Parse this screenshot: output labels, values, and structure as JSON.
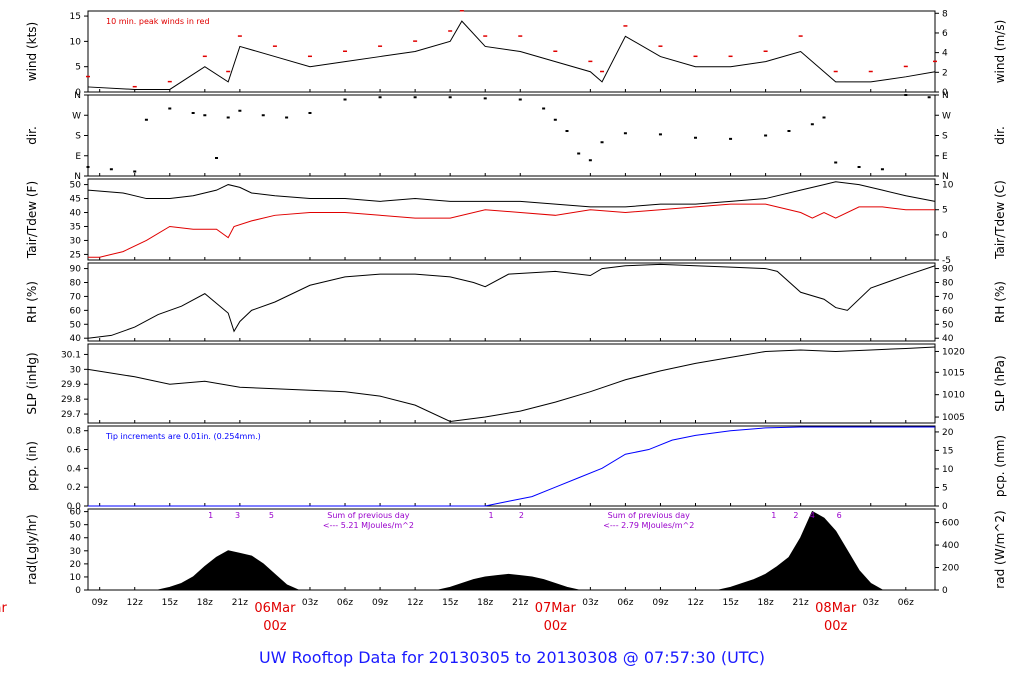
{
  "footer_title": "UW Rooftop Data for 20130305  to  20130308 @ 07:57:30  (UTC)",
  "colors": {
    "axis": "#000000",
    "series": "#000000",
    "red": "#e00000",
    "blue": "#0000ff",
    "purple": "#9900cc",
    "footer": "#1a1aff"
  },
  "x_axis": {
    "ticks": [
      {
        "hour": 1,
        "label": "09z"
      },
      {
        "hour": 4,
        "label": "12z"
      },
      {
        "hour": 7,
        "label": "15z"
      },
      {
        "hour": 10,
        "label": "18z"
      },
      {
        "hour": 13,
        "label": "21z"
      },
      {
        "hour": 19,
        "label": "03z"
      },
      {
        "hour": 22,
        "label": "06z"
      },
      {
        "hour": 25,
        "label": "09z"
      },
      {
        "hour": 28,
        "label": "12z"
      },
      {
        "hour": 31,
        "label": "15z"
      },
      {
        "hour": 34,
        "label": "18z"
      },
      {
        "hour": 37,
        "label": "21z"
      },
      {
        "hour": 43,
        "label": "03z"
      },
      {
        "hour": 46,
        "label": "06z"
      },
      {
        "hour": 49,
        "label": "09z"
      },
      {
        "hour": 52,
        "label": "12z"
      },
      {
        "hour": 55,
        "label": "15z"
      },
      {
        "hour": 58,
        "label": "18z"
      },
      {
        "hour": 61,
        "label": "21z"
      },
      {
        "hour": 67,
        "label": "03z"
      },
      {
        "hour": 70,
        "label": "06z"
      }
    ],
    "days": [
      {
        "hour": -8,
        "date": "Mar",
        "z": "z"
      },
      {
        "hour": 16,
        "date": "06Mar",
        "z": "00z"
      },
      {
        "hour": 40,
        "date": "07Mar",
        "z": "00z"
      },
      {
        "hour": 64,
        "date": "08Mar",
        "z": "00z"
      }
    ],
    "range_hours": [
      0,
      72.5
    ]
  },
  "chart_data": [
    {
      "type": "line",
      "id": "wind",
      "ylabel_left": "wind (kts)",
      "ylabel_right": "wind (m/s)",
      "annotation": "10 min. peak winds in red",
      "ylim": [
        0,
        16
      ],
      "left_ticks": [
        0,
        5,
        10,
        15
      ],
      "right_ticks": [
        {
          "value": 0,
          "label": "0"
        },
        {
          "value": 3.89,
          "label": "2"
        },
        {
          "value": 7.78,
          "label": "4"
        },
        {
          "value": 11.66,
          "label": "6"
        },
        {
          "value": 15.55,
          "label": "8"
        }
      ],
      "series": [
        {
          "x": [
            0,
            4,
            7,
            10,
            12,
            13,
            16,
            19,
            22,
            25,
            28,
            31,
            32,
            34,
            37,
            40,
            43,
            44,
            46,
            49,
            52,
            55,
            58,
            61,
            64,
            67,
            70,
            72.5
          ],
          "values": [
            1,
            0.5,
            0.5,
            5,
            2,
            9,
            7,
            5,
            6,
            7,
            8,
            10,
            14,
            9,
            8,
            6,
            4,
            2,
            11,
            7,
            5,
            5,
            6,
            8,
            2,
            2,
            3,
            4
          ]
        }
      ],
      "peak_x": [
        0,
        4,
        7,
        10,
        12,
        13,
        16,
        19,
        22,
        25,
        28,
        31,
        32,
        34,
        37,
        40,
        43,
        44,
        46,
        49,
        52,
        55,
        58,
        61,
        64,
        67,
        70,
        72.5
      ],
      "peak_values": [
        3,
        1,
        2,
        7,
        4,
        11,
        9,
        7,
        8,
        9,
        10,
        12,
        16,
        11,
        11,
        8,
        6,
        4,
        13,
        9,
        7,
        7,
        8,
        11,
        4,
        4,
        5,
        6
      ]
    },
    {
      "type": "scatter",
      "id": "dir",
      "ylabel_left": "dir.",
      "ylabel_right": "dir.",
      "ylim": [
        0,
        360
      ],
      "left_ticks": [
        {
          "value": 0,
          "label": "N"
        },
        {
          "value": 90,
          "label": "E"
        },
        {
          "value": 180,
          "label": "S"
        },
        {
          "value": 270,
          "label": "W"
        },
        {
          "value": 360,
          "label": "N"
        }
      ],
      "right_ticks": [
        {
          "value": 0,
          "label": "N"
        },
        {
          "value": 90,
          "label": "E"
        },
        {
          "value": 180,
          "label": "S"
        },
        {
          "value": 270,
          "label": "W"
        },
        {
          "value": 360,
          "label": "N"
        }
      ],
      "series": [
        {
          "x": [
            0,
            2,
            4,
            5,
            7,
            9,
            10,
            11,
            12,
            13,
            15,
            17,
            19,
            22,
            25,
            28,
            31,
            34,
            37,
            39,
            40,
            41,
            42,
            43,
            44,
            46,
            49,
            52,
            55,
            58,
            60,
            62,
            63,
            64,
            66,
            68,
            70,
            72
          ],
          "values": [
            40,
            30,
            20,
            250,
            300,
            280,
            270,
            80,
            260,
            290,
            270,
            260,
            280,
            340,
            350,
            350,
            350,
            345,
            340,
            300,
            250,
            200,
            100,
            70,
            150,
            190,
            185,
            170,
            165,
            180,
            200,
            230,
            260,
            60,
            40,
            30,
            360,
            350
          ]
        }
      ]
    },
    {
      "type": "line",
      "id": "temp",
      "ylabel_left": "Tair/Tdew (F)",
      "ylabel_right": "Tair/Tdew (C)",
      "ylim": [
        23,
        52
      ],
      "left_ticks": [
        25,
        30,
        35,
        40,
        45,
        50
      ],
      "right_ticks": [
        {
          "value": 23,
          "label": "-5"
        },
        {
          "value": 32,
          "label": "0"
        },
        {
          "value": 41,
          "label": "5"
        },
        {
          "value": 50,
          "label": "10"
        }
      ],
      "series": [
        {
          "x": [
            0,
            3,
            5,
            7,
            9,
            11,
            12,
            13,
            14,
            16,
            19,
            22,
            25,
            28,
            31,
            34,
            37,
            40,
            43,
            46,
            49,
            52,
            55,
            58,
            61,
            63,
            64,
            66,
            68,
            70,
            72.5
          ],
          "values": [
            48,
            47,
            45,
            45,
            46,
            48,
            50,
            49,
            47,
            46,
            45,
            45,
            44,
            45,
            44,
            44,
            44,
            43,
            42,
            42,
            43,
            43,
            44,
            45,
            48,
            50,
            51,
            50,
            48,
            46,
            44
          ]
        },
        {
          "x": [
            0,
            1,
            3,
            5,
            7,
            9,
            11,
            12,
            12.5,
            14,
            16,
            19,
            22,
            25,
            28,
            31,
            34,
            37,
            40,
            43,
            46,
            49,
            52,
            55,
            58,
            61,
            62,
            63,
            64,
            66,
            68,
            70,
            72.5
          ],
          "values": [
            24,
            24,
            26,
            30,
            35,
            34,
            34,
            31,
            35,
            37,
            39,
            40,
            40,
            39,
            38,
            38,
            41,
            40,
            39,
            41,
            40,
            41,
            42,
            43,
            43,
            40,
            38,
            40,
            38,
            42,
            42,
            41,
            41
          ]
        }
      ]
    },
    {
      "type": "line",
      "id": "rh",
      "ylabel_left": "RH (%)",
      "ylabel_right": "RH (%)",
      "ylim": [
        38,
        94
      ],
      "left_ticks": [
        40,
        50,
        60,
        70,
        80,
        90
      ],
      "right_ticks": [
        {
          "value": 40,
          "label": "40"
        },
        {
          "value": 50,
          "label": "50"
        },
        {
          "value": 60,
          "label": "60"
        },
        {
          "value": 70,
          "label": "70"
        },
        {
          "value": 80,
          "label": "80"
        },
        {
          "value": 90,
          "label": "90"
        }
      ],
      "series": [
        {
          "x": [
            0,
            2,
            4,
            6,
            8,
            10,
            12,
            12.5,
            13,
            14,
            16,
            19,
            22,
            25,
            28,
            31,
            33,
            34,
            36,
            40,
            43,
            44,
            46,
            49,
            52,
            55,
            58,
            59,
            61,
            63,
            64,
            65,
            67,
            70,
            72.5
          ],
          "values": [
            40,
            42,
            48,
            57,
            63,
            72,
            58,
            45,
            52,
            60,
            66,
            78,
            84,
            86,
            86,
            84,
            80,
            77,
            86,
            88,
            85,
            90,
            92,
            93,
            92,
            91,
            90,
            88,
            73,
            68,
            62,
            60,
            76,
            85,
            92
          ]
        }
      ]
    },
    {
      "type": "line",
      "id": "slp",
      "ylabel_left": "SLP (inHg)",
      "ylabel_right": "SLP (hPa)",
      "ylim": [
        29.64,
        30.17
      ],
      "left_ticks": [
        29.7,
        29.8,
        29.9,
        30.0,
        30.1
      ],
      "right_ticks": [
        {
          "value": 29.68,
          "label": "1005"
        },
        {
          "value": 29.83,
          "label": "1010"
        },
        {
          "value": 29.98,
          "label": "1015"
        },
        {
          "value": 30.12,
          "label": "1020"
        }
      ],
      "series": [
        {
          "x": [
            0,
            4,
            7,
            10,
            13,
            16,
            19,
            22,
            25,
            28,
            31,
            34,
            37,
            40,
            43,
            46,
            49,
            52,
            55,
            58,
            61,
            64,
            67,
            70,
            72.5
          ],
          "values": [
            30.0,
            29.95,
            29.9,
            29.92,
            29.88,
            29.87,
            29.86,
            29.85,
            29.82,
            29.76,
            29.65,
            29.68,
            29.72,
            29.78,
            29.85,
            29.93,
            29.99,
            30.04,
            30.08,
            30.12,
            30.13,
            30.12,
            30.13,
            30.14,
            30.15
          ]
        }
      ]
    },
    {
      "type": "area",
      "id": "pcp",
      "ylabel_left": "pcp. (in)",
      "ylabel_right": "pcp. (mm)",
      "annotation": "Tip increments are 0.01in. (0.254mm.)",
      "ylim": [
        0,
        0.85
      ],
      "left_ticks": [
        0,
        0.2,
        0.4,
        0.6,
        0.8
      ],
      "left_labels": [
        "0.0",
        "0.2",
        "0.4",
        "0.6",
        "0.8"
      ],
      "right_ticks": [
        {
          "value": 0,
          "label": "0"
        },
        {
          "value": 0.197,
          "label": "5"
        },
        {
          "value": 0.394,
          "label": "10"
        },
        {
          "value": 0.591,
          "label": "15"
        },
        {
          "value": 0.787,
          "label": "20"
        }
      ],
      "series": [
        {
          "x": [
            0,
            34,
            36,
            38,
            40,
            42,
            44,
            46,
            48,
            50,
            52,
            55,
            58,
            61,
            64,
            67,
            70,
            72.5
          ],
          "values": [
            0,
            0,
            0.05,
            0.1,
            0.2,
            0.3,
            0.4,
            0.55,
            0.6,
            0.7,
            0.75,
            0.8,
            0.83,
            0.84,
            0.84,
            0.84,
            0.84,
            0.84
          ]
        }
      ]
    },
    {
      "type": "area",
      "id": "rad",
      "ylabel_left": "rad(Lgly/hr)",
      "ylabel_right": "rad (W/m^2)",
      "ylim": [
        0,
        62
      ],
      "left_ticks": [
        0,
        10,
        20,
        30,
        40,
        50,
        60
      ],
      "right_ticks": [
        {
          "value": 0,
          "label": "0"
        },
        {
          "value": 17.2,
          "label": "200"
        },
        {
          "value": 34.4,
          "label": "400"
        },
        {
          "value": 51.6,
          "label": "600"
        }
      ],
      "series": [
        {
          "x": [
            6,
            7,
            8,
            9,
            10,
            11,
            12,
            13,
            14,
            15,
            16,
            17,
            18,
            30,
            31,
            32,
            33,
            34,
            35,
            36,
            37,
            38,
            39,
            40,
            41,
            42,
            54,
            55,
            56,
            57,
            58,
            59,
            60,
            61,
            62,
            63,
            64,
            65,
            66,
            67,
            68
          ],
          "values": [
            0,
            2,
            5,
            10,
            18,
            25,
            30,
            28,
            26,
            20,
            12,
            4,
            0,
            0,
            2,
            5,
            8,
            10,
            11,
            12,
            11,
            10,
            8,
            5,
            2,
            0,
            0,
            2,
            5,
            8,
            12,
            18,
            25,
            40,
            60,
            55,
            45,
            30,
            15,
            5,
            0
          ]
        }
      ],
      "sun_ticks": [
        {
          "hour": 10.5,
          "label": "1"
        },
        {
          "hour": 12.8,
          "label": "3"
        },
        {
          "hour": 15.7,
          "label": "5"
        },
        {
          "hour": 34.5,
          "label": "1"
        },
        {
          "hour": 37.1,
          "label": "2"
        },
        {
          "hour": 58.7,
          "label": "1"
        },
        {
          "hour": 60.6,
          "label": "2"
        },
        {
          "hour": 62.0,
          "label": "4"
        },
        {
          "hour": 64.3,
          "label": "6"
        }
      ],
      "notes": [
        {
          "hour": 24,
          "line1": "Sum of previous day",
          "line2": "<--- 5.21 MJoules/m^2"
        },
        {
          "hour": 48,
          "line1": "Sum of previous day",
          "line2": "<--- 2.79 MJoules/m^2"
        }
      ]
    }
  ]
}
